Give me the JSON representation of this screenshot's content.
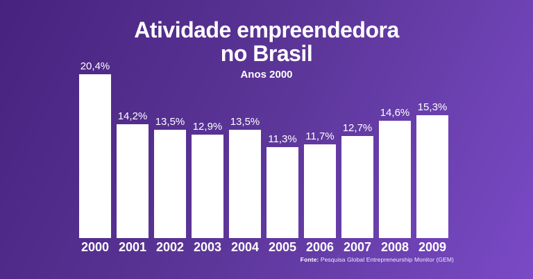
{
  "theme": {
    "background_gradient": [
      "#47237f",
      "#5b3597",
      "#7a4ac6"
    ],
    "bar_color": "#ffffff",
    "text_color": "#ffffff"
  },
  "header": {
    "title_line1": "Atividade empreendedora",
    "title_line2": "no Brasil",
    "subtitle": "Anos 2000"
  },
  "footer": {
    "source_label": "Fonte:",
    "source_text": " Pesquisa Global Entrepreneurship Monitor (GEM)"
  },
  "chart_data": {
    "type": "bar",
    "title": "Atividade empreendedora no Brasil",
    "subtitle": "Anos 2000",
    "categories": [
      "2000",
      "2001",
      "2002",
      "2003",
      "2004",
      "2005",
      "2006",
      "2007",
      "2008",
      "2009"
    ],
    "values": [
      20.4,
      14.2,
      13.5,
      12.9,
      13.5,
      11.3,
      11.7,
      12.7,
      14.6,
      15.3
    ],
    "value_labels": [
      "20,4%",
      "14,2%",
      "13,5%",
      "12,9%",
      "13,5%",
      "11,3%",
      "11,7%",
      "12,7%",
      "14,6%",
      "15,3%"
    ],
    "xlabel": "",
    "ylabel": "",
    "ylim": [
      0,
      20.4
    ],
    "grid": false,
    "legend": false,
    "bar_color": "#ffffff",
    "source": "Fonte: Pesquisa Global Entrepreneurship Monitor (GEM)"
  }
}
